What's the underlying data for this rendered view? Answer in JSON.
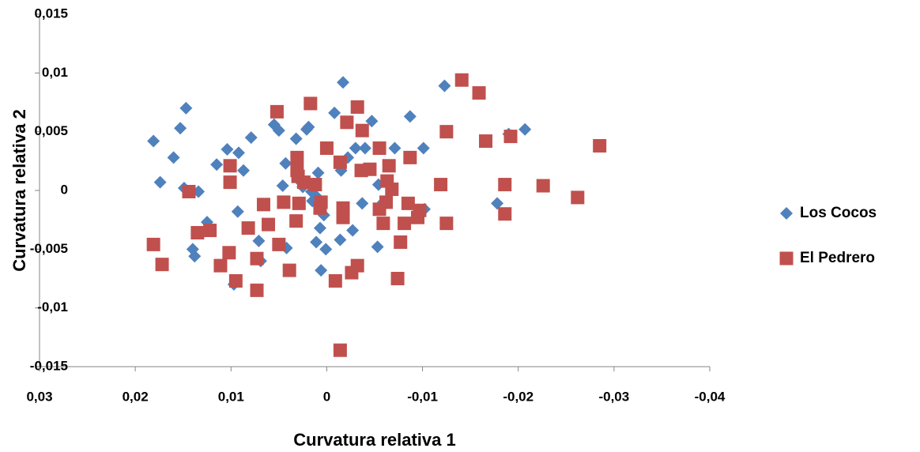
{
  "chart_data": {
    "type": "scatter",
    "x_label": "Curvatura relativa 1",
    "y_label": "Curvatura relativa 2",
    "xlim": [
      0.03,
      -0.04
    ],
    "ylim": [
      -0.015,
      0.015
    ],
    "xticks": [
      {
        "value": 0.03,
        "label": "0,03"
      },
      {
        "value": 0.02,
        "label": "0,02"
      },
      {
        "value": 0.01,
        "label": "0,01"
      },
      0,
      {
        "value": -0.01,
        "label": "-0,01"
      },
      {
        "value": -0.02,
        "label": "-0,02"
      },
      {
        "value": -0.03,
        "label": "-0,03"
      },
      {
        "value": -0.04,
        "label": "-0,04"
      }
    ],
    "yticks": [
      {
        "value": -0.015,
        "label": "-0,015"
      },
      {
        "value": -0.01,
        "label": "-0,01"
      },
      {
        "value": -0.005,
        "label": "-0,005"
      },
      0,
      {
        "value": 0.005,
        "label": "0,005"
      },
      {
        "value": 0.01,
        "label": "0,01"
      },
      {
        "value": 0.015,
        "label": "0,015"
      }
    ],
    "grid": false,
    "series": [
      {
        "name": "Los Cocos",
        "color": "#4f81bd",
        "marker": "diamond",
        "x": [
          0.0181,
          0.0174,
          0.0147,
          0.0153,
          0.016,
          0.0149,
          0.0134,
          0.0125,
          0.014,
          0.0138,
          0.0115,
          0.0104,
          0.0092,
          0.0087,
          0.0079,
          0.0093,
          0.0097,
          0.0071,
          0.0069,
          0.0055,
          0.005,
          0.0032,
          0.0021,
          0.0019,
          0.0043,
          0.0046,
          0.0025,
          0.0016,
          0.0009,
          0.0011,
          0.0007,
          0.0011,
          0.0007,
          0.0003,
          0.0042,
          0.0015,
          0.0006,
          0.0001,
          -0.0008,
          -0.0017,
          -0.0015,
          -0.0014,
          -0.0027,
          -0.003,
          -0.0047,
          -0.004,
          -0.0037,
          -0.0053,
          -0.0059,
          -0.0071,
          -0.0087,
          -0.0101,
          -0.0102,
          -0.0123,
          -0.0178,
          -0.019,
          -0.0207,
          -0.0054,
          -0.0022,
          0.0027
        ],
        "y": [
          0.0042,
          0.0007,
          0.007,
          0.0053,
          0.0028,
          0.0002,
          -0.0001,
          -0.0027,
          -0.005,
          -0.0056,
          0.0022,
          0.0035,
          0.0032,
          0.0017,
          0.0045,
          -0.0018,
          -0.008,
          -0.0043,
          -0.006,
          0.0056,
          0.0051,
          0.0044,
          0.0052,
          0.0054,
          0.0023,
          0.0004,
          0.0003,
          -0.0001,
          0.0015,
          -0.0005,
          -0.0032,
          -0.0044,
          -0.0014,
          -0.0021,
          -0.0049,
          -0.0009,
          -0.0068,
          -0.005,
          0.0066,
          0.0092,
          0.0017,
          -0.0042,
          -0.0034,
          0.0036,
          0.0059,
          0.0036,
          -0.0011,
          -0.0048,
          -0.001,
          0.0036,
          0.0063,
          0.0036,
          -0.0016,
          0.0089,
          -0.0011,
          0.0048,
          0.0052,
          0.0005,
          0.0028,
          0.0007
        ]
      },
      {
        "name": "El Pedrero",
        "color": "#c0504d",
        "marker": "square",
        "x": [
          0.0181,
          0.0172,
          0.0144,
          0.0135,
          0.0122,
          0.0111,
          0.0101,
          0.0101,
          0.0102,
          0.0095,
          0.0082,
          0.0073,
          0.0073,
          0.0066,
          0.0061,
          0.0052,
          0.005,
          0.0045,
          0.0039,
          0.0032,
          0.0031,
          0.0031,
          0.0029,
          0.003,
          0.0024,
          0.0017,
          0.0012,
          0.0006,
          0.0007,
          0,
          -0.0009,
          -0.0014,
          -0.0017,
          -0.0017,
          -0.0021,
          -0.0026,
          -0.0032,
          -0.0032,
          -0.0037,
          -0.0036,
          -0.0045,
          -0.0055,
          -0.0055,
          -0.0059,
          -0.0063,
          -0.0065,
          -0.0068,
          -0.0062,
          -0.0074,
          -0.0077,
          -0.0081,
          -0.0087,
          -0.0085,
          -0.0095,
          -0.0097,
          -0.0119,
          -0.0125,
          -0.0125,
          -0.0141,
          -0.0159,
          -0.0166,
          -0.0186,
          -0.0186,
          -0.0192,
          -0.0226,
          -0.0262,
          -0.0285,
          -0.0014
        ],
        "y": [
          -0.0046,
          -0.0063,
          -0.0001,
          -0.0036,
          -0.0034,
          -0.0064,
          0.0021,
          0.0007,
          -0.0053,
          -0.0077,
          -0.0032,
          -0.0085,
          -0.0058,
          -0.0012,
          -0.0029,
          0.0067,
          -0.0046,
          -0.001,
          -0.0068,
          -0.0026,
          0.0028,
          0.0017,
          -0.0011,
          0.0012,
          0.0007,
          0.0074,
          0.0005,
          -0.001,
          -0.0015,
          0.0036,
          -0.0077,
          0.0024,
          -0.0015,
          -0.0023,
          0.0058,
          -0.007,
          0.0071,
          -0.0064,
          0.0051,
          0.0017,
          0.0018,
          0.0036,
          -0.0016,
          -0.0028,
          0.0008,
          0.0021,
          0.0001,
          -0.001,
          -0.0075,
          -0.0044,
          -0.0028,
          0.0028,
          -0.0011,
          -0.0023,
          -0.0017,
          0.0005,
          0.005,
          -0.0028,
          0.0094,
          0.0083,
          0.0042,
          0.0005,
          -0.002,
          0.0046,
          0.0004,
          -0.0006,
          0.0038,
          -0.0136
        ]
      }
    ]
  }
}
